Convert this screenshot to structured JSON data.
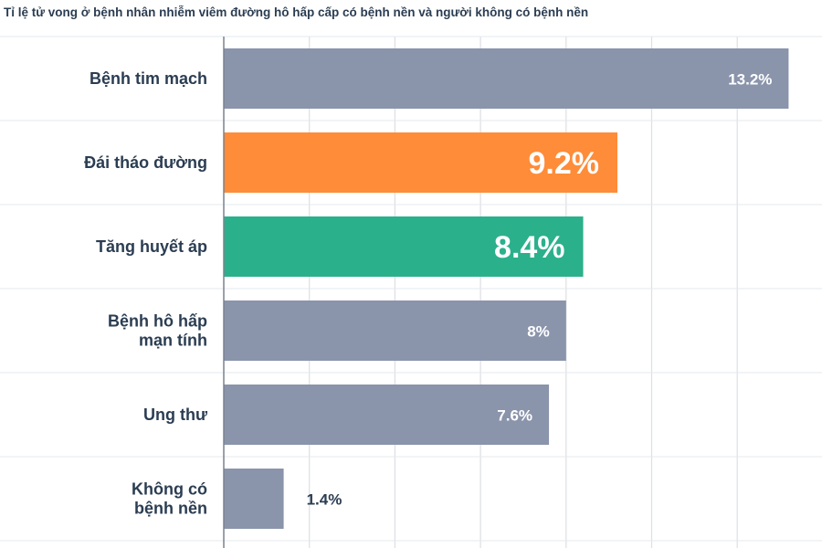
{
  "chart_data": {
    "type": "bar",
    "orientation": "horizontal",
    "title": "Tỉ lệ tử vong ở bệnh nhân nhiễm viêm đường hô hấp cấp có bệnh nền và người không có bệnh nền",
    "categories": [
      "Bệnh tim mạch",
      "Đái tháo đường",
      "Tăng huyết áp",
      "Bệnh hô hấp mạn tính",
      "Ung thư",
      "Không có bệnh nền"
    ],
    "category_lines": [
      [
        "Bệnh tim mạch"
      ],
      [
        "Đái tháo đường"
      ],
      [
        "Tăng huyết áp"
      ],
      [
        "Bệnh hô hấp",
        "mạn tính"
      ],
      [
        "Ung thư"
      ],
      [
        "Không có",
        "bệnh nền"
      ]
    ],
    "values": [
      13.2,
      9.2,
      8.4,
      8,
      7.6,
      1.4
    ],
    "value_labels": [
      "13.2%",
      "9.2%",
      "8.4%",
      "8%",
      "7.6%",
      "1.4%"
    ],
    "bar_colors": [
      "#8a94ab",
      "#ff8c38",
      "#2bb08c",
      "#8a94ab",
      "#8a94ab",
      "#8a94ab"
    ],
    "highlighted": [
      false,
      true,
      true,
      false,
      false,
      false
    ],
    "xlim": [
      0,
      14
    ],
    "grid": true,
    "colors": {
      "default": "#8a94ab",
      "highlight_orange": "#ff8c38",
      "highlight_green": "#2bb08c",
      "text": "#2b3d52"
    }
  }
}
